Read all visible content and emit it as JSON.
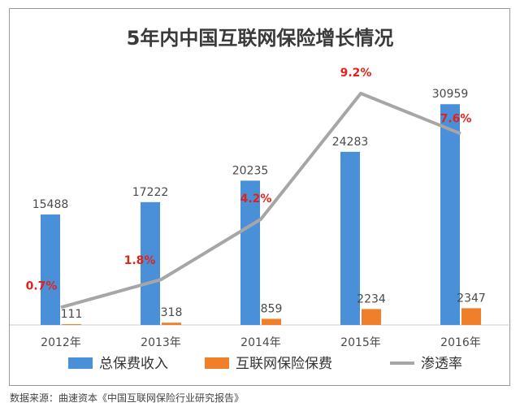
{
  "chart_data": {
    "type": "bar",
    "title": "5年内中国互联网保险增长情况",
    "categories": [
      "2012年",
      "2013年",
      "2014年",
      "2015年",
      "2016年"
    ],
    "series": [
      {
        "name": "总保费收入",
        "kind": "bar",
        "color": "#4a90d9",
        "values": [
          15488,
          17222,
          20235,
          24283,
          30959
        ],
        "labels": [
          "15488",
          "17222",
          "20235",
          "24283",
          "30959"
        ]
      },
      {
        "name": "互联网保险保费",
        "kind": "bar",
        "color": "#f07f2c",
        "values": [
          111,
          318,
          859,
          2234,
          2347
        ],
        "labels": [
          "111",
          "318",
          "859",
          "2234",
          "2347"
        ]
      },
      {
        "name": "渗透率",
        "kind": "line",
        "color": "#a6a6a6",
        "values": [
          0.7,
          1.8,
          4.2,
          9.2,
          7.6
        ],
        "labels": [
          "0.7%",
          "1.8%",
          "4.2%",
          "9.2%",
          "7.6%"
        ],
        "label_color": "#e2231a"
      }
    ],
    "ylim": [
      0,
      36000
    ],
    "y2lim": [
      0,
      10.2
    ],
    "xlabel": "",
    "ylabel": "",
    "legend": "bottom"
  },
  "source_text": "数据来源：曲速资本《中国互联网保险行业研究报告》"
}
